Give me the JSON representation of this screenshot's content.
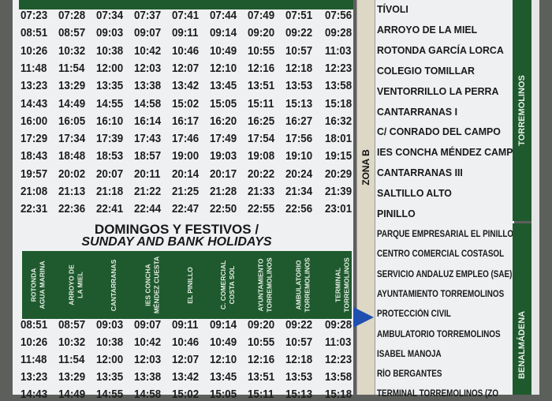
{
  "weekday_times": [
    [
      "07:23",
      "07:28",
      "07:34",
      "07:37",
      "07:41",
      "07:44",
      "07:49",
      "07:51",
      "07:56"
    ],
    [
      "08:51",
      "08:57",
      "09:03",
      "09:07",
      "09:11",
      "09:14",
      "09:20",
      "09:22",
      "09:28"
    ],
    [
      "10:26",
      "10:32",
      "10:38",
      "10:42",
      "10:46",
      "10:49",
      "10:55",
      "10:57",
      "11:03"
    ],
    [
      "11:48",
      "11:54",
      "12:00",
      "12:03",
      "12:07",
      "12:10",
      "12:16",
      "12:18",
      "12:23"
    ],
    [
      "13:23",
      "13:29",
      "13:35",
      "13:38",
      "13:42",
      "13:45",
      "13:51",
      "13:53",
      "13:58"
    ],
    [
      "14:43",
      "14:49",
      "14:55",
      "14:58",
      "15:02",
      "15:05",
      "15:11",
      "15:13",
      "15:18"
    ],
    [
      "16:00",
      "16:05",
      "16:10",
      "16:14",
      "16:17",
      "16:20",
      "16:25",
      "16:27",
      "16:32"
    ],
    [
      "17:29",
      "17:34",
      "17:39",
      "17:43",
      "17:46",
      "17:49",
      "17:54",
      "17:56",
      "18:01"
    ],
    [
      "18:43",
      "18:48",
      "18:53",
      "18:57",
      "19:00",
      "19:03",
      "19:08",
      "19:10",
      "19:15"
    ],
    [
      "19:57",
      "20:02",
      "20:07",
      "20:11",
      "20:14",
      "20:17",
      "20:22",
      "20:24",
      "20:29"
    ],
    [
      "21:08",
      "21:13",
      "21:18",
      "21:22",
      "21:25",
      "21:28",
      "21:33",
      "21:34",
      "21:39"
    ],
    [
      "22:31",
      "22:36",
      "22:41",
      "22:44",
      "22:47",
      "22:50",
      "22:55",
      "22:56",
      "23:01"
    ]
  ],
  "sunday": {
    "title_es": "DOMINGOS Y FESTIVOS /",
    "title_en": "SUNDAY AND BANK HOLIDAYS",
    "headers": [
      "ROTONDA\nAGUA MARINA",
      "ARROYO DE\nLA MIEL",
      "CANTARRANAS",
      "IES CONCHA\nMÉNDEZ CUESTA",
      "EL PINILLO",
      "C. COMERCIAL\nCOSTA SOL",
      "AYUNTAMIENTO\nTORREMOLINOS",
      "AMBULATORIO\nTORREMOLINOS",
      "TERMINAL\nTORREMOLINOS"
    ],
    "times": [
      [
        "08:51",
        "08:57",
        "09:03",
        "09:07",
        "09:11",
        "09:14",
        "09:20",
        "09:22",
        "09:28"
      ],
      [
        "10:26",
        "10:32",
        "10:38",
        "10:42",
        "10:46",
        "10:49",
        "10:55",
        "10:57",
        "11:03"
      ],
      [
        "11:48",
        "11:54",
        "12:00",
        "12:03",
        "12:07",
        "12:10",
        "12:16",
        "12:18",
        "12:23"
      ],
      [
        "13:23",
        "13:29",
        "13:35",
        "13:38",
        "13:42",
        "13:45",
        "13:51",
        "13:53",
        "13:58"
      ],
      [
        "14:43",
        "14:49",
        "14:55",
        "14:58",
        "15:02",
        "15:05",
        "15:11",
        "15:13",
        "15:18"
      ]
    ]
  },
  "zone_label": "ZONA B",
  "stops": [
    "TÍVOLI",
    "ARROYO DE LA MIEL",
    "ROTONDA GARCÍA LORCA",
    "COLEGIO TOMILLAR",
    "VENTORRILLO LA PERRA",
    "CANTARRANAS I",
    "C/ CONRADO DEL CAMPO",
    "IES CONCHA MÉNDEZ CAMPOS",
    "CANTARRANAS III",
    "SALTILLO ALTO",
    "PINILLO",
    "PARQUE EMPRESARIAL EL PINILLO",
    "CENTRO COMERCIAL COSTASOL",
    "SERVICIO ANDALUZ EMPLEO (SAE)",
    "AYUNTAMIENTO TORREMOLINOS",
    "PROTECCIÓN CIVIL",
    "AMBULATORIO TORREMOLINOS",
    "ISABEL MANOJA",
    "RÍO BERGANTES",
    "TERMINAL TORREMOLINOS (ZO"
  ],
  "municipality_labels": [
    "TORREMOLINOS",
    "BENALMÁDENA"
  ],
  "colors": {
    "green": "#1f5a2e",
    "marker": "#1f4fb0"
  }
}
